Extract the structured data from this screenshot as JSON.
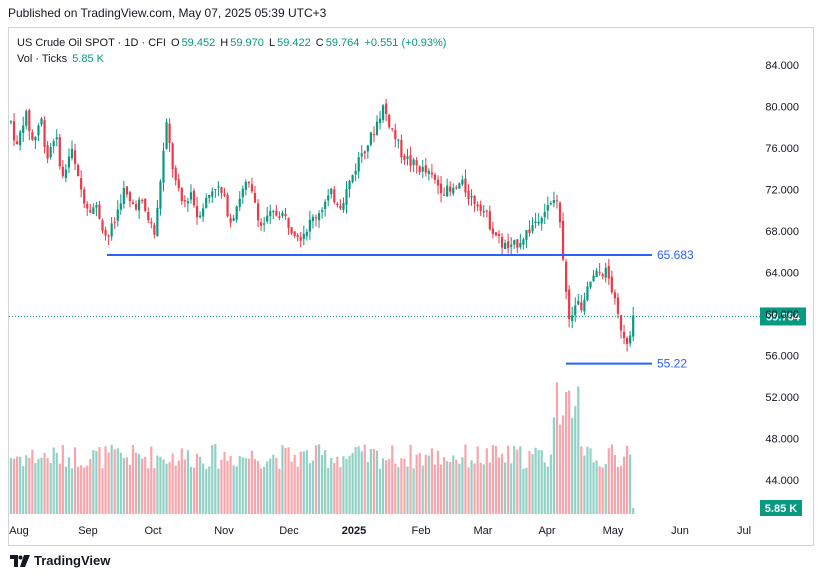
{
  "header": {
    "published": "Published on TradingView.com, May 07, 2025 05:39 UTC+3"
  },
  "legend": {
    "symbol": "US Crude Oil SPOT · 1D · CFI",
    "open_label": "O",
    "open": "59.452",
    "high_label": "H",
    "high": "59.970",
    "low_label": "L",
    "low": "59.422",
    "close_label": "C",
    "close": "59.764",
    "change": "+0.551 (+0.93%)",
    "vol_label": "Vol · Ticks",
    "vol_value": "5.85 K"
  },
  "footer": {
    "brand": "TradingView"
  },
  "colors": {
    "up": "#089981",
    "down": "#f23645",
    "line": "#2962ff",
    "price_tag": "#089981"
  },
  "chart_data": {
    "type": "candlestick",
    "title": "US Crude Oil SPOT · 1D · CFI",
    "ylim": [
      42,
      86
    ],
    "y_ticks": [
      "84.000",
      "80.000",
      "76.000",
      "72.000",
      "68.000",
      "64.000",
      "60.000",
      "56.000",
      "52.000",
      "48.000",
      "44.000"
    ],
    "x_ticks": [
      "Aug",
      "Sep",
      "Oct",
      "Nov",
      "Dec",
      "2025",
      "Feb",
      "Mar",
      "Apr",
      "May",
      "Jun",
      "Jul"
    ],
    "last_price": "59.764",
    "volume_last": "5.85 K",
    "horizontal_lines": [
      {
        "label": "65.683",
        "value": 65.683
      },
      {
        "label": "55.22",
        "value": 55.22
      }
    ],
    "approx_close_path": [
      {
        "month": "Aug",
        "close": 78.5
      },
      {
        "month": "Sep",
        "close": 68.0
      },
      {
        "month": "Oct",
        "close": 73.0
      },
      {
        "month": "Nov",
        "close": 69.5
      },
      {
        "month": "Dec",
        "close": 70.0
      },
      {
        "month": "2025",
        "close": 74.0
      },
      {
        "month": "Feb",
        "close": 73.0
      },
      {
        "month": "Mar",
        "close": 68.5
      },
      {
        "month": "Apr",
        "close": 62.0
      },
      {
        "month": "May",
        "close": 59.764
      }
    ]
  }
}
